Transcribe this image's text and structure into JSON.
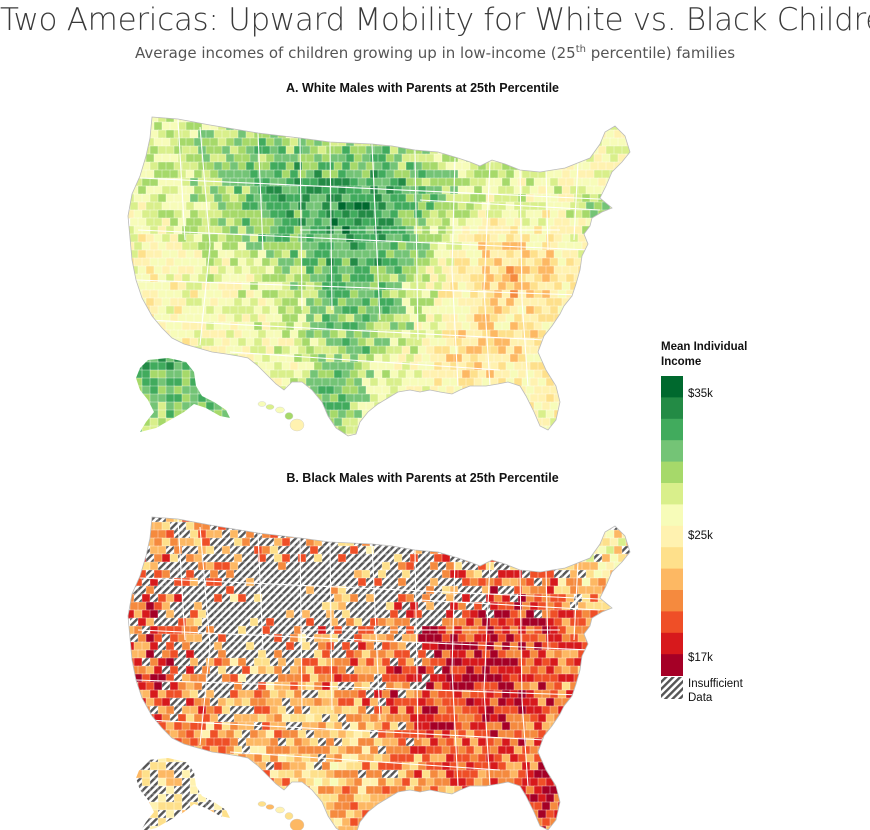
{
  "title": "Two Americas: Upward Mobility for White vs. Black Children",
  "subtitle": {
    "before": "Average incomes of children growing up in low-income (25",
    "sup": "th",
    "after": " percentile) families"
  },
  "panels": [
    {
      "title": "A. White Males with Parents at 25th Percentile"
    },
    {
      "title": "B. Black Males with Parents at 25th Percentile"
    }
  ],
  "legend": {
    "title": "Mean Individual Income",
    "colors": [
      "#00692e",
      "#238b45",
      "#41ab5d",
      "#74c476",
      "#a6d96a",
      "#d9ef8b",
      "#f7fcb9",
      "#fff2b0",
      "#fee08b",
      "#fdb863",
      "#f58a3e",
      "#ef4f27",
      "#d7191c",
      "#a50026"
    ],
    "tick_labels": [
      "$35k",
      "$25k",
      "$17k"
    ],
    "insufficient_label": "Insufficient Data",
    "hatch_colors": [
      "#ffffff",
      "#555555"
    ]
  },
  "regions": [
    "Contiguous U.S.",
    "Alaska",
    "Hawaii"
  ]
}
